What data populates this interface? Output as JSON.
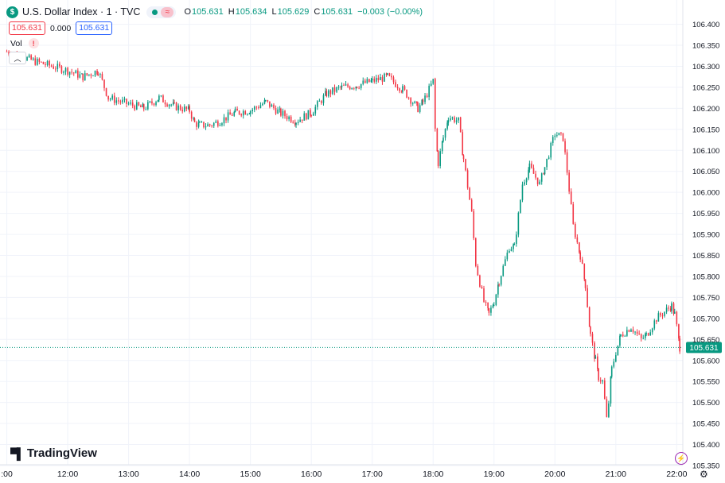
{
  "header": {
    "symbol_icon": "$",
    "symbol": "U.S. Dollar Index · 1 · TVC",
    "ohlc": [
      {
        "key": "O",
        "value": "105.631"
      },
      {
        "key": "H",
        "value": "105.634"
      },
      {
        "key": "L",
        "value": "105.629"
      },
      {
        "key": "C",
        "value": "105.631"
      }
    ],
    "change": "−0.003 (−0.00%)"
  },
  "price_row": {
    "sell": "105.631",
    "spread": "0.000",
    "buy": "105.631"
  },
  "volume": {
    "label": "Vol",
    "warning": "!"
  },
  "branding": {
    "name": "TradingView"
  },
  "colors": {
    "up": "#089981",
    "down": "#f23645",
    "price_line": "#089981",
    "grid": "#f0f3fa"
  },
  "icons": {
    "bolt": "lightning-icon",
    "settings": "gear-icon",
    "collapse": "chevron-up-icon"
  },
  "chart_data": {
    "type": "candlestick",
    "title": "",
    "y_axis": {
      "range": [
        105.35,
        106.42
      ],
      "ticks": [
        "106.400",
        "106.350",
        "106.300",
        "106.250",
        "106.200",
        "106.150",
        "106.100",
        "106.050",
        "106.000",
        "105.950",
        "105.900",
        "105.850",
        "105.800",
        "105.750",
        "105.700",
        "105.650",
        "105.600",
        "105.550",
        "105.500",
        "105.450",
        "105.400",
        "105.350"
      ]
    },
    "x_axis": {
      "range": [
        "10:58",
        "22:06"
      ],
      "ticks": [
        ":00",
        "12:00",
        "13:00",
        "14:00",
        "15:00",
        "16:00",
        "17:00",
        "18:00",
        "19:00",
        "20:00",
        "21:00",
        "22:00"
      ]
    },
    "last_price": "105.631",
    "last_price_value": 105.631,
    "price_path": [
      [
        "11:00",
        106.335
      ],
      [
        "11:30",
        106.31
      ],
      [
        "12:00",
        106.29
      ],
      [
        "12:15",
        106.275
      ],
      [
        "12:30",
        106.29
      ],
      [
        "12:40",
        106.225
      ],
      [
        "13:00",
        106.21
      ],
      [
        "13:15",
        106.2
      ],
      [
        "13:30",
        106.225
      ],
      [
        "13:45",
        106.205
      ],
      [
        "14:00",
        106.195
      ],
      [
        "14:05",
        106.165
      ],
      [
        "14:10",
        106.16
      ],
      [
        "14:20",
        106.16
      ],
      [
        "14:30",
        106.17
      ],
      [
        "14:45",
        106.19
      ],
      [
        "15:00",
        106.195
      ],
      [
        "15:15",
        106.215
      ],
      [
        "15:30",
        106.188
      ],
      [
        "15:45",
        106.17
      ],
      [
        "16:00",
        106.19
      ],
      [
        "16:15",
        106.235
      ],
      [
        "16:30",
        106.25
      ],
      [
        "16:45",
        106.255
      ],
      [
        "17:00",
        106.265
      ],
      [
        "17:15",
        106.275
      ],
      [
        "17:30",
        106.245
      ],
      [
        "17:45",
        106.2
      ],
      [
        "17:50",
        106.215
      ],
      [
        "18:00",
        106.265
      ],
      [
        "18:02",
        106.15
      ],
      [
        "18:05",
        106.07
      ],
      [
        "18:10",
        106.13
      ],
      [
        "18:15",
        106.18
      ],
      [
        "18:25",
        106.17
      ],
      [
        "18:30",
        106.08
      ],
      [
        "18:38",
        105.95
      ],
      [
        "18:42",
        105.83
      ],
      [
        "18:50",
        105.74
      ],
      [
        "18:55",
        105.71
      ],
      [
        "19:00",
        105.74
      ],
      [
        "19:05",
        105.79
      ],
      [
        "19:15",
        105.87
      ],
      [
        "19:20",
        105.87
      ],
      [
        "19:28",
        106.02
      ],
      [
        "19:35",
        106.06
      ],
      [
        "19:45",
        106.02
      ],
      [
        "19:50",
        106.06
      ],
      [
        "20:00",
        106.14
      ],
      [
        "20:08",
        106.13
      ],
      [
        "20:12",
        106.05
      ],
      [
        "20:18",
        105.92
      ],
      [
        "20:25",
        105.85
      ],
      [
        "20:30",
        105.78
      ],
      [
        "20:35",
        105.66
      ],
      [
        "20:40",
        105.6
      ],
      [
        "20:43",
        105.56
      ],
      [
        "20:47",
        105.55
      ],
      [
        "20:51",
        105.46
      ],
      [
        "20:53",
        105.5
      ],
      [
        "20:56",
        105.58
      ],
      [
        "21:00",
        105.62
      ],
      [
        "21:05",
        105.66
      ],
      [
        "21:15",
        105.68
      ],
      [
        "21:25",
        105.65
      ],
      [
        "21:30",
        105.66
      ],
      [
        "21:40",
        105.7
      ],
      [
        "21:50",
        105.72
      ],
      [
        "21:55",
        105.73
      ],
      [
        "21:58",
        105.71
      ],
      [
        "22:00",
        105.68
      ],
      [
        "22:03",
        105.631
      ]
    ]
  }
}
